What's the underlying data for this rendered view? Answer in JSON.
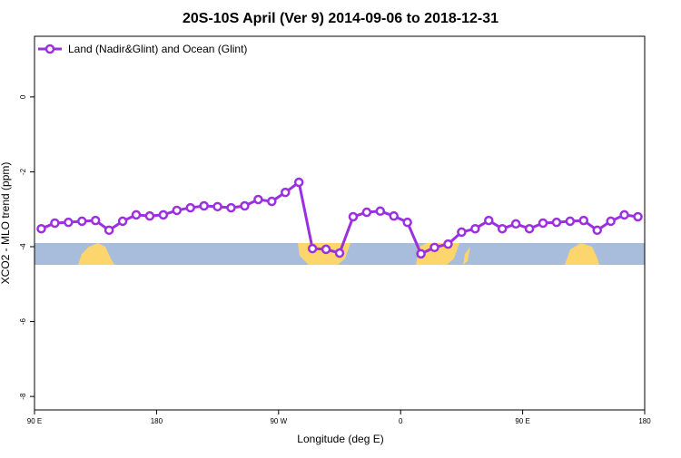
{
  "chart_data": {
    "type": "line",
    "title": "20S-10S April (Ver 9)   2014-09-06 to 2018-12-31",
    "x_label": "Longitude (deg E)",
    "y_label": "XCO2 - MLO trend (ppm)",
    "x": [
      95,
      105,
      115,
      125,
      135,
      145,
      155,
      165,
      175,
      185,
      195,
      205,
      215,
      225,
      235,
      245,
      255,
      265,
      275,
      285,
      295,
      305,
      315,
      325,
      335,
      345,
      355,
      365,
      375,
      385,
      395,
      405,
      415,
      425,
      435,
      445,
      455,
      465,
      475,
      485,
      495,
      505,
      515,
      525,
      535
    ],
    "series": [
      {
        "name": "Land (Nadir&Glint) and Ocean (Glint)",
        "color": "#9b30e0",
        "values": [
          -3.52,
          -3.37,
          -3.35,
          -3.32,
          -3.3,
          -3.56,
          -3.32,
          -3.15,
          -3.18,
          -3.15,
          -3.03,
          -2.96,
          -2.91,
          -2.93,
          -2.96,
          -2.91,
          -2.74,
          -2.79,
          -2.55,
          -2.28,
          -4.05,
          -4.07,
          -4.17,
          -3.2,
          -3.08,
          -3.05,
          -3.18,
          -3.35,
          -4.19,
          -4.02,
          -3.93,
          -3.61,
          -3.52,
          -3.3,
          -3.52,
          -3.39,
          -3.52,
          -3.37,
          -3.35,
          -3.32,
          -3.3,
          -3.56,
          -3.32,
          -3.15,
          -3.2
        ]
      }
    ],
    "xlim": [
      90,
      540
    ],
    "xticks": [
      {
        "value": 90,
        "label": "90 E"
      },
      180,
      {
        "value": 270,
        "label": "90 W"
      },
      {
        "value": 360,
        "label": "0"
      },
      {
        "value": 450,
        "label": "90 E"
      },
      {
        "value": 540,
        "label": "180"
      }
    ],
    "ylim": [
      -8.36,
      1.62
    ],
    "yticks": [
      0,
      -2,
      -4,
      -6,
      -8
    ],
    "legend": "top-left"
  }
}
